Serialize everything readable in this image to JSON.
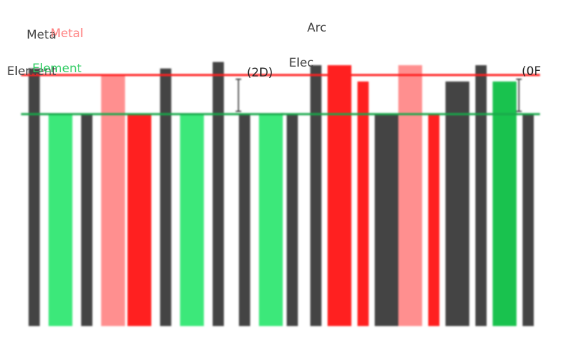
{
  "chart_data": {
    "type": "bar",
    "gap_label_unit": "(",
    "panels": [
      {
        "labels": {
          "metal_echo": "Meta",
          "metal": "Metal",
          "element_echo": "Element",
          "element": "Element",
          "gap": "(2D)"
        },
        "reference_lines": [
          {
            "name": "Metal",
            "color": "#ff2020",
            "value": 77
          },
          {
            "name": "Element",
            "color": "#19a84a",
            "value": 65
          }
        ],
        "bars": [
          {
            "color": "#444444",
            "value": 79
          },
          {
            "color": "#3ce87a",
            "value": 65
          },
          {
            "color": "#444444",
            "value": 65
          },
          {
            "color": "#ff8f8f",
            "value": 77
          },
          {
            "color": "#ff2020",
            "value": 65
          },
          {
            "color": "#444444",
            "value": 79
          },
          {
            "color": "#3ce87a",
            "value": 65
          },
          {
            "color": "#444444",
            "value": 81
          },
          {
            "color": "#444444",
            "value": 65
          },
          {
            "color": "#3ce87a",
            "value": 65
          }
        ]
      },
      {
        "labels": {
          "metal": "Arc",
          "element": "Elec",
          "gap": "(0F"
        },
        "reference_lines": [
          {
            "name": "Metal",
            "color": "#ff2020",
            "value": 77
          },
          {
            "name": "Element",
            "color": "#19a84a",
            "value": 65
          }
        ],
        "bars": [
          {
            "color": "#444444",
            "value": 65
          },
          {
            "color": "#444444",
            "value": 80
          },
          {
            "color": "#ff2020",
            "value": 80
          },
          {
            "color": "#ff2020",
            "value": 75
          },
          {
            "color": "#444444",
            "value": 65
          },
          {
            "color": "#ff8f8f",
            "value": 80
          },
          {
            "color": "#ff2020",
            "value": 65
          },
          {
            "color": "#444444",
            "value": 75
          },
          {
            "color": "#444444",
            "value": 80
          },
          {
            "color": "#19c24e",
            "value": 75
          },
          {
            "color": "#444444",
            "value": 65
          }
        ]
      }
    ],
    "ylim": [
      0,
      100
    ],
    "grid": false
  }
}
